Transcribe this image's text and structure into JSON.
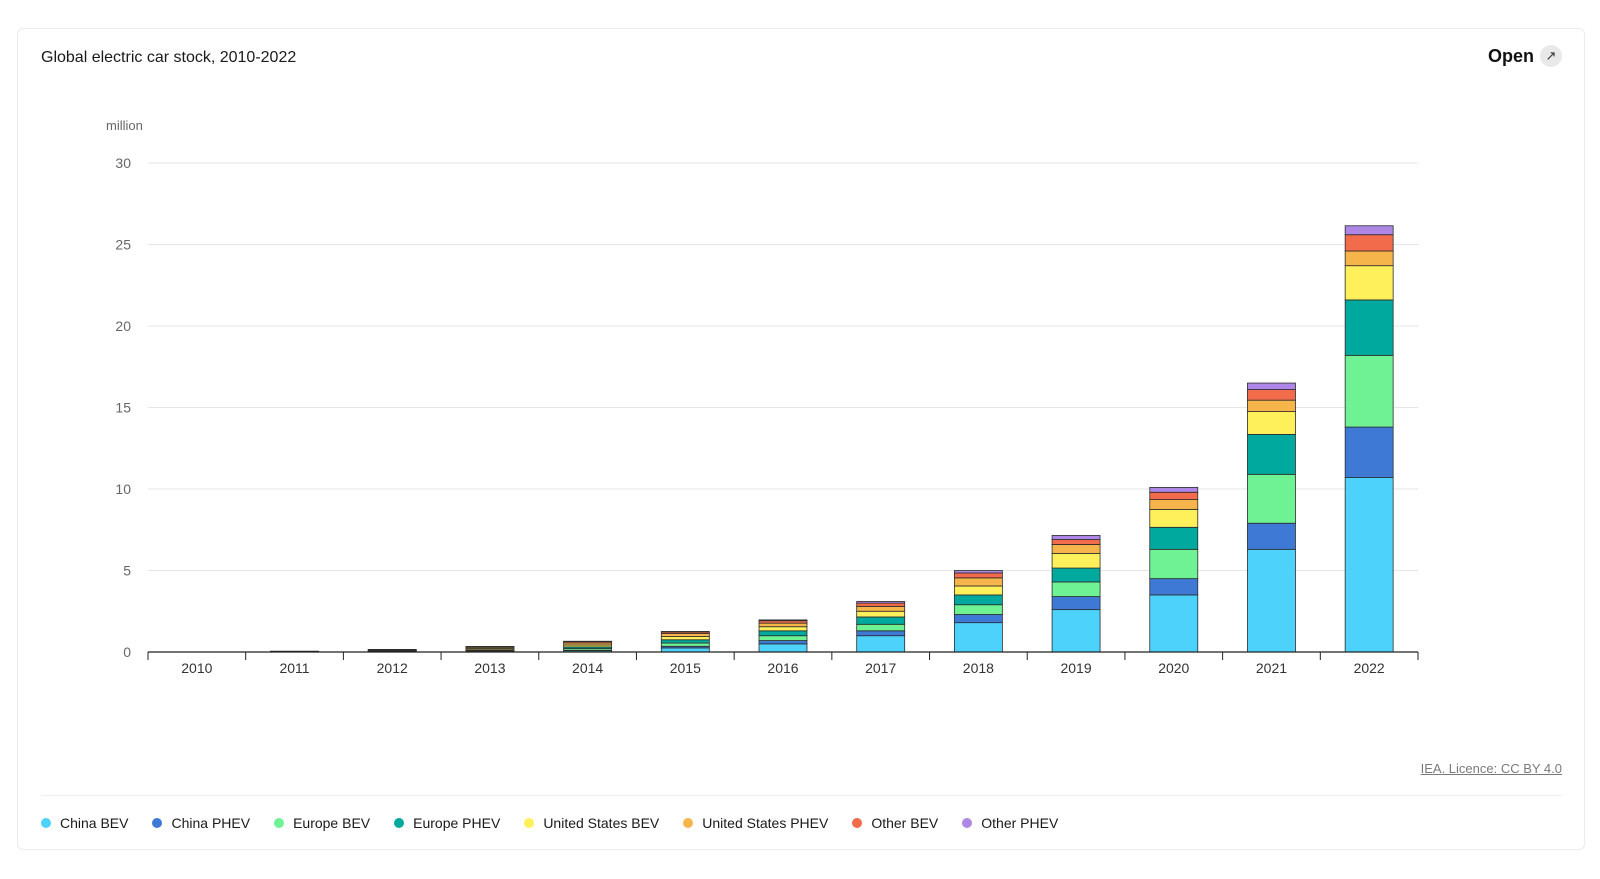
{
  "header": {
    "title": "Global electric car stock, 2010-2022",
    "open_label": "Open",
    "open_icon": "expand-arrow-icon"
  },
  "footer": {
    "licence": "IEA. Licence: CC BY 4.0"
  },
  "chart_data": {
    "type": "bar",
    "stacked": true,
    "title": "Global electric car stock, 2010-2022",
    "ylabel": "million",
    "xlabel": "",
    "ylim": [
      0,
      30
    ],
    "yticks": [
      0,
      5,
      10,
      15,
      20,
      25,
      30
    ],
    "grid": true,
    "legend_position": "bottom",
    "categories": [
      "2010",
      "2011",
      "2012",
      "2013",
      "2014",
      "2015",
      "2016",
      "2017",
      "2018",
      "2019",
      "2020",
      "2021",
      "2022"
    ],
    "series": [
      {
        "name": "China BEV",
        "color": "#4dd2fc",
        "values": [
          0.0,
          0.01,
          0.02,
          0.03,
          0.08,
          0.25,
          0.5,
          1.0,
          1.8,
          2.6,
          3.5,
          6.3,
          10.7
        ]
      },
      {
        "name": "China PHEV",
        "color": "#3e79d6",
        "values": [
          0.0,
          0.0,
          0.0,
          0.01,
          0.03,
          0.1,
          0.2,
          0.3,
          0.5,
          0.8,
          1.0,
          1.6,
          3.1
        ]
      },
      {
        "name": "Europe BEV",
        "color": "#6ef294",
        "values": [
          0.0,
          0.01,
          0.03,
          0.05,
          0.1,
          0.2,
          0.3,
          0.4,
          0.6,
          0.9,
          1.8,
          3.0,
          4.4
        ]
      },
      {
        "name": "Europe PHEV",
        "color": "#00a99d",
        "values": [
          0.0,
          0.0,
          0.02,
          0.05,
          0.1,
          0.2,
          0.3,
          0.45,
          0.6,
          0.85,
          1.35,
          2.45,
          3.4
        ]
      },
      {
        "name": "United States BEV",
        "color": "#fdf05a",
        "values": [
          0.0,
          0.01,
          0.03,
          0.07,
          0.12,
          0.2,
          0.25,
          0.35,
          0.55,
          0.9,
          1.1,
          1.4,
          2.1
        ]
      },
      {
        "name": "United States PHEV",
        "color": "#f6b54a",
        "values": [
          0.0,
          0.01,
          0.04,
          0.08,
          0.13,
          0.18,
          0.22,
          0.3,
          0.5,
          0.55,
          0.6,
          0.7,
          0.9
        ]
      },
      {
        "name": "Other BEV",
        "color": "#f26b4a",
        "values": [
          0.0,
          0.01,
          0.02,
          0.04,
          0.08,
          0.1,
          0.15,
          0.2,
          0.3,
          0.3,
          0.45,
          0.65,
          1.0
        ]
      },
      {
        "name": "Other PHEV",
        "color": "#ad86e6",
        "values": [
          0.0,
          0.0,
          0.0,
          0.01,
          0.02,
          0.03,
          0.05,
          0.1,
          0.15,
          0.25,
          0.3,
          0.4,
          0.55
        ]
      }
    ]
  }
}
